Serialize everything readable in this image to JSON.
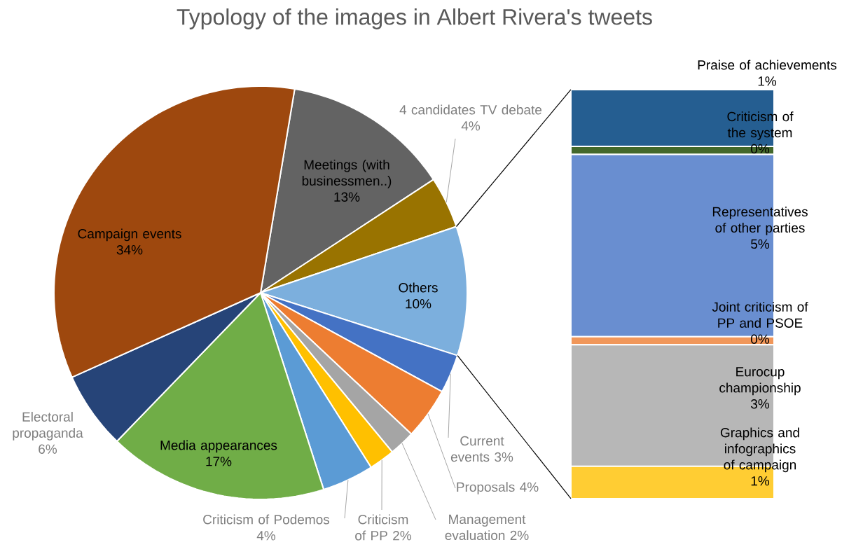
{
  "chart_data": [
    {
      "type": "pie",
      "title": "Typology of the images in Albert Rivera's tweets",
      "categories": [
        "Meetings (with businessmen..)",
        "4 candidates TV debate",
        "Others",
        "Current events",
        "Proposals",
        "Management evaluation",
        "Criticism of PP",
        "Criticism of Podemos",
        "Media appearances",
        "Electoral propaganda",
        "Campaign events"
      ],
      "values": [
        13,
        4,
        10,
        3,
        4,
        2,
        2,
        4,
        17,
        6,
        34
      ],
      "value_labels": [
        "13%",
        "4%",
        "10%",
        "3%",
        "4%",
        "2%",
        "2%",
        "4%",
        "17%",
        "6%",
        "34%"
      ],
      "colors": [
        "#636363",
        "#997300",
        "#7cafdd",
        "#4472c4",
        "#ed7d31",
        "#a5a5a5",
        "#ffc000",
        "#5b9bd5",
        "#70ad47",
        "#264478",
        "#9e480e"
      ]
    },
    {
      "type": "bar",
      "stacked": true,
      "categories": [
        null
      ],
      "series": [
        {
          "name": "Graphics and infographics of campaign",
          "color": "#ffcd33",
          "values": [
            0.8
          ],
          "value_labels": [
            "1%"
          ]
        },
        {
          "name": "Eurocup championship",
          "color": "#b7b7b7",
          "values": [
            3.0
          ],
          "value_labels": [
            "3%"
          ]
        },
        {
          "name": "Joint criticism of PP and PSOE",
          "color": "#f1975a",
          "values": [
            0.2
          ],
          "value_labels": [
            "0%"
          ]
        },
        {
          "name": "Representatives of other parties",
          "color": "#698ed0",
          "values": [
            4.5
          ],
          "value_labels": [
            "5%"
          ]
        },
        {
          "name": "Criticism of the system",
          "color": "#43682b",
          "values": [
            0.2
          ],
          "value_labels": [
            "0%"
          ]
        },
        {
          "name": "Praise of achievements",
          "color": "#255e91",
          "values": [
            1.4
          ],
          "value_labels": [
            "1%"
          ]
        }
      ]
    }
  ]
}
